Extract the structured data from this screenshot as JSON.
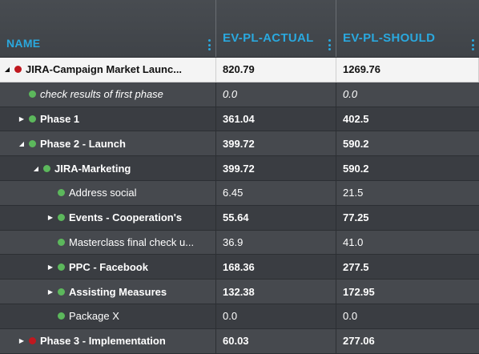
{
  "columns": [
    {
      "label": "NAME"
    },
    {
      "label": "EV-PL-ACTUAL"
    },
    {
      "label": "EV-PL-SHOULD"
    }
  ],
  "colors": {
    "accent": "#2aa8de",
    "status_green": "#5cb85c",
    "status_red": "#c0181f"
  },
  "rows": [
    {
      "label": "JIRA-Campaign Market Launc...",
      "actual": "820.79",
      "should": "1269.76",
      "indent": 0,
      "toggle": "expanded",
      "status": "red",
      "bold": true,
      "italic": false
    },
    {
      "label": "check results of first phase",
      "actual": "0.0",
      "should": "0.0",
      "indent": 1,
      "toggle": "none",
      "status": "green",
      "bold": false,
      "italic": true
    },
    {
      "label": "Phase 1",
      "actual": "361.04",
      "should": "402.5",
      "indent": 1,
      "toggle": "collapsed",
      "status": "green",
      "bold": true,
      "italic": false
    },
    {
      "label": "Phase 2 - Launch",
      "actual": "399.72",
      "should": "590.2",
      "indent": 1,
      "toggle": "expanded",
      "status": "green",
      "bold": true,
      "italic": false
    },
    {
      "label": "JIRA-Marketing",
      "actual": "399.72",
      "should": "590.2",
      "indent": 2,
      "toggle": "expanded",
      "status": "green",
      "bold": true,
      "italic": false
    },
    {
      "label": "Address social",
      "actual": "6.45",
      "should": "21.5",
      "indent": 3,
      "toggle": "none",
      "status": "green",
      "bold": false,
      "italic": false
    },
    {
      "label": "Events - Cooperation's",
      "actual": "55.64",
      "should": "77.25",
      "indent": 3,
      "toggle": "collapsed",
      "status": "green",
      "bold": true,
      "italic": false
    },
    {
      "label": "Masterclass final check u...",
      "actual": "36.9",
      "should": "41.0",
      "indent": 3,
      "toggle": "none",
      "status": "green",
      "bold": false,
      "italic": false
    },
    {
      "label": "PPC - Facebook",
      "actual": "168.36",
      "should": "277.5",
      "indent": 3,
      "toggle": "collapsed",
      "status": "green",
      "bold": true,
      "italic": false
    },
    {
      "label": "Assisting Measures",
      "actual": "132.38",
      "should": "172.95",
      "indent": 3,
      "toggle": "collapsed",
      "status": "green",
      "bold": true,
      "italic": false
    },
    {
      "label": "Package X",
      "actual": "0.0",
      "should": "0.0",
      "indent": 3,
      "toggle": "none",
      "status": "green",
      "bold": false,
      "italic": false
    },
    {
      "label": "Phase 3 - Implementation",
      "actual": "60.03",
      "should": "277.06",
      "indent": 1,
      "toggle": "collapsed",
      "status": "red",
      "bold": true,
      "italic": false
    }
  ]
}
